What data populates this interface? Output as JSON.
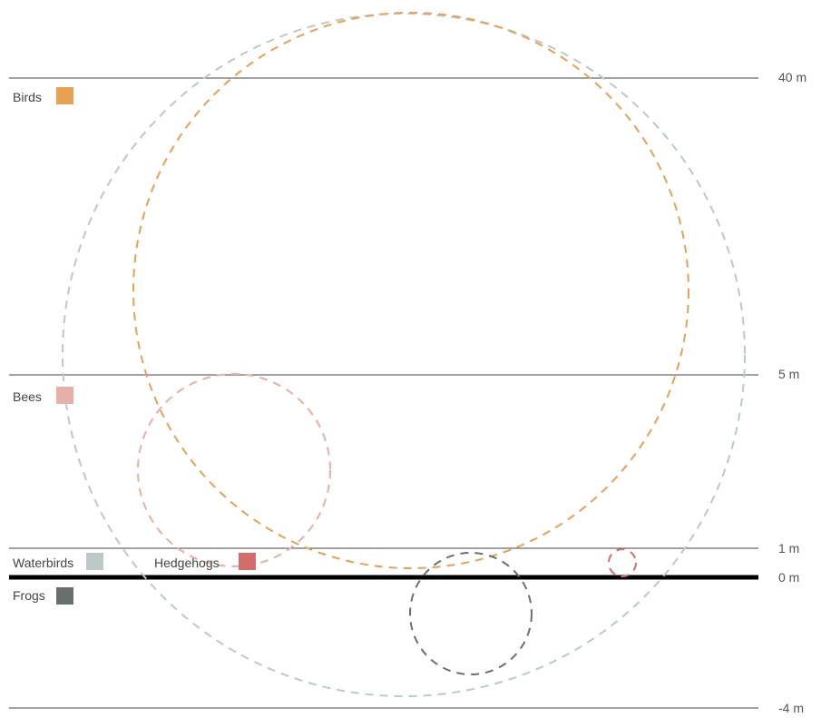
{
  "levels": [
    {
      "label": "40 m"
    },
    {
      "label": "5 m"
    },
    {
      "label": "1 m"
    },
    {
      "label": "0 m"
    },
    {
      "label": "-4 m"
    }
  ],
  "legend": [
    {
      "label": "Birds",
      "color": "#e8a153"
    },
    {
      "label": "Bees",
      "color": "#e7b0a6"
    },
    {
      "label": "Waterbirds",
      "color": "#bcc9c7"
    },
    {
      "label": "Hedgehogs",
      "color": "#d26d6a"
    },
    {
      "label": "Frogs",
      "color": "#66706c"
    }
  ],
  "habitats": [
    {
      "name": "Waterbirds",
      "color": "#bcc9c7"
    },
    {
      "name": "Birds",
      "color": "#e8a153"
    },
    {
      "name": "Bees",
      "color": "#e7b0a6"
    },
    {
      "name": "Frogs",
      "color": "#66706c"
    },
    {
      "name": "Hedgehogs",
      "color": "#d26d6a"
    }
  ]
}
